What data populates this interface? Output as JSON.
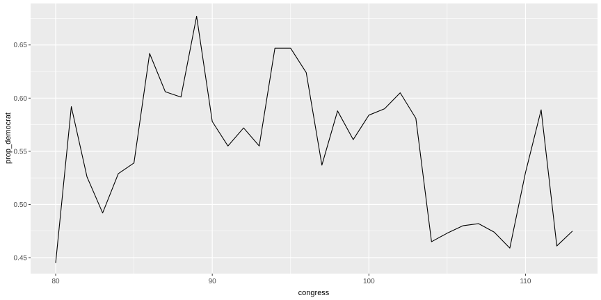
{
  "chart_data": {
    "type": "line",
    "xlabel": "congress",
    "ylabel": "prop_democrat",
    "xlim": [
      78.4,
      114.6
    ],
    "ylim": [
      0.435,
      0.689
    ],
    "x_ticks": [
      80,
      90,
      100,
      110
    ],
    "x_tick_labels": [
      "80",
      "90",
      "100",
      "110"
    ],
    "y_ticks": [
      0.45,
      0.5,
      0.55,
      0.6,
      0.65
    ],
    "y_tick_labels": [
      "0.45",
      "0.50",
      "0.55",
      "0.60",
      "0.65"
    ],
    "grid": true,
    "panel_background": "#ebebeb",
    "grid_color": "#ffffff",
    "line_color": "#000000",
    "series": [
      {
        "x": [
          80,
          81,
          82,
          83,
          84,
          85,
          86,
          87,
          88,
          89,
          90,
          91,
          92,
          93,
          94,
          95,
          96,
          97,
          98,
          99,
          100,
          101,
          102,
          103,
          104,
          105,
          106,
          107,
          108,
          109,
          110,
          111,
          112,
          113
        ],
        "values": [
          0.445,
          0.592,
          0.526,
          0.492,
          0.529,
          0.539,
          0.642,
          0.606,
          0.601,
          0.677,
          0.578,
          0.555,
          0.572,
          0.555,
          0.647,
          0.647,
          0.624,
          0.537,
          0.588,
          0.561,
          0.584,
          0.59,
          0.605,
          0.581,
          0.465,
          0.473,
          0.48,
          0.482,
          0.474,
          0.459,
          0.53,
          0.589,
          0.461,
          0.475
        ]
      }
    ]
  }
}
